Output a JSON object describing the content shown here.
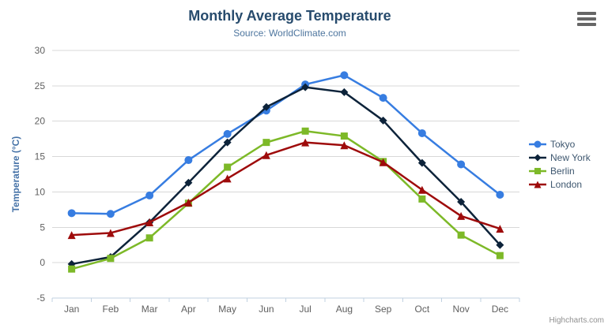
{
  "header": {
    "title": "Monthly Average Temperature",
    "subtitle": "Source: WorldClimate.com"
  },
  "credits": {
    "label": "Highcharts.com"
  },
  "colors": {
    "title": "#274b6d",
    "subtitle": "#4d759e",
    "axis_label": "#606060",
    "axis_title": "#4572a7",
    "grid_line": "#d8d8d8",
    "axis_line": "#c0d0e0",
    "legend_text": "#3e576f",
    "menu_icon": "#666666",
    "credits_text": "#909090"
  },
  "chart_data": {
    "type": "line",
    "title": "Monthly Average Temperature",
    "subtitle": "Source: WorldClimate.com",
    "categories": [
      "Jan",
      "Feb",
      "Mar",
      "Apr",
      "May",
      "Jun",
      "Jul",
      "Aug",
      "Sep",
      "Oct",
      "Nov",
      "Dec"
    ],
    "series": [
      {
        "name": "Tokyo",
        "color": "#377de1",
        "marker": "circle",
        "values": [
          7.0,
          6.9,
          9.5,
          14.5,
          18.2,
          21.5,
          25.2,
          26.5,
          23.3,
          18.3,
          13.9,
          9.6
        ]
      },
      {
        "name": "New York",
        "color": "#0d233a",
        "marker": "diamond",
        "values": [
          -0.2,
          0.8,
          5.7,
          11.3,
          17.0,
          22.0,
          24.8,
          24.1,
          20.1,
          14.1,
          8.6,
          2.5
        ]
      },
      {
        "name": "Berlin",
        "color": "#7db928",
        "marker": "square",
        "values": [
          -0.9,
          0.6,
          3.5,
          8.4,
          13.5,
          17.0,
          18.6,
          17.9,
          14.3,
          9.0,
          3.9,
          1.0
        ]
      },
      {
        "name": "London",
        "color": "#9e0b0b",
        "marker": "triangle",
        "values": [
          3.9,
          4.2,
          5.7,
          8.5,
          11.9,
          15.2,
          17.0,
          16.6,
          14.2,
          10.3,
          6.6,
          4.8
        ]
      }
    ],
    "xlabel": "",
    "ylabel": "Temperature (°C)",
    "ylim": [
      -5,
      30
    ],
    "ytick_interval": 5,
    "yticks": [
      -5,
      0,
      5,
      10,
      15,
      20,
      25,
      30
    ],
    "grid": true,
    "legend_position": "right"
  }
}
